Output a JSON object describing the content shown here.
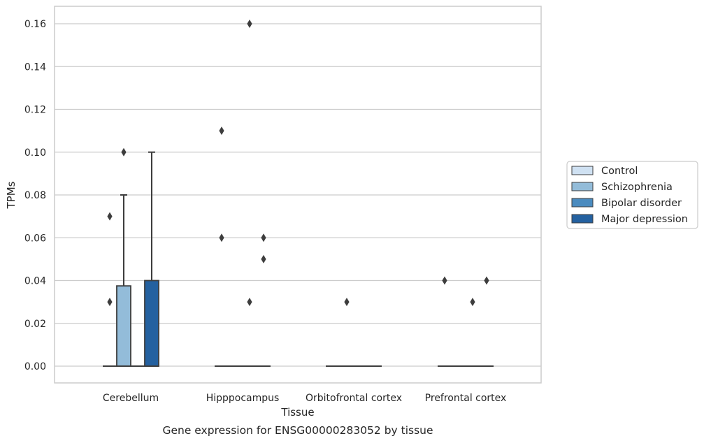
{
  "chart_data": {
    "type": "boxplot",
    "caption": "Gene expression for ENSG00000283052 by tissue",
    "xlabel": "Tissue",
    "ylabel": "TPMs",
    "ylim": [
      -0.008,
      0.168
    ],
    "yticks": [
      "0.00",
      "0.02",
      "0.04",
      "0.06",
      "0.08",
      "0.10",
      "0.12",
      "0.14",
      "0.16"
    ],
    "grid": true,
    "legend_position": "right",
    "categories": [
      "Cerebellum",
      "Hipppocampus",
      "Orbitofrontal cortex",
      "Prefrontal cortex"
    ],
    "series": [
      {
        "name": "Control",
        "color": "#cfe1f2",
        "boxes": [
          {
            "q1": 0,
            "median": 0,
            "q3": 0,
            "whisker_low": 0,
            "whisker_high": 0,
            "outliers": [
              0.03,
              0.07
            ]
          },
          {
            "q1": 0,
            "median": 0,
            "q3": 0,
            "whisker_low": 0,
            "whisker_high": 0,
            "outliers": [
              0.06,
              0.11
            ]
          },
          {
            "q1": 0,
            "median": 0,
            "q3": 0,
            "whisker_low": 0,
            "whisker_high": 0,
            "outliers": []
          },
          {
            "q1": 0,
            "median": 0,
            "q3": 0,
            "whisker_low": 0,
            "whisker_high": 0,
            "outliers": [
              0.04
            ]
          }
        ]
      },
      {
        "name": "Schizophrenia",
        "color": "#93bcd9",
        "boxes": [
          {
            "q1": 0,
            "median": 0,
            "q3": 0.0375,
            "whisker_low": 0,
            "whisker_high": 0.08,
            "outliers": [
              0.1
            ]
          },
          {
            "q1": 0,
            "median": 0,
            "q3": 0,
            "whisker_low": 0,
            "whisker_high": 0,
            "outliers": []
          },
          {
            "q1": 0,
            "median": 0,
            "q3": 0,
            "whisker_low": 0,
            "whisker_high": 0,
            "outliers": [
              0.03
            ]
          },
          {
            "q1": 0,
            "median": 0,
            "q3": 0,
            "whisker_low": 0,
            "whisker_high": 0,
            "outliers": []
          }
        ]
      },
      {
        "name": "Bipolar disorder",
        "color": "#4a8bbf",
        "boxes": [
          {
            "q1": 0,
            "median": 0,
            "q3": 0,
            "whisker_low": 0,
            "whisker_high": 0,
            "outliers": []
          },
          {
            "q1": 0,
            "median": 0,
            "q3": 0,
            "whisker_low": 0,
            "whisker_high": 0,
            "outliers": [
              0.03,
              0.16
            ]
          },
          {
            "q1": 0,
            "median": 0,
            "q3": 0,
            "whisker_low": 0,
            "whisker_high": 0,
            "outliers": []
          },
          {
            "q1": 0,
            "median": 0,
            "q3": 0,
            "whisker_low": 0,
            "whisker_high": 0,
            "outliers": [
              0.03
            ]
          }
        ]
      },
      {
        "name": "Major depression",
        "color": "#2461a0",
        "boxes": [
          {
            "q1": 0,
            "median": 0,
            "q3": 0.04,
            "whisker_low": 0,
            "whisker_high": 0.1,
            "outliers": []
          },
          {
            "q1": 0,
            "median": 0,
            "q3": 0,
            "whisker_low": 0,
            "whisker_high": 0,
            "outliers": [
              0.05,
              0.06
            ]
          },
          {
            "q1": 0,
            "median": 0,
            "q3": 0,
            "whisker_low": 0,
            "whisker_high": 0,
            "outliers": []
          },
          {
            "q1": 0,
            "median": 0,
            "q3": 0,
            "whisker_low": 0,
            "whisker_high": 0,
            "outliers": [
              0.04
            ]
          }
        ]
      }
    ]
  }
}
